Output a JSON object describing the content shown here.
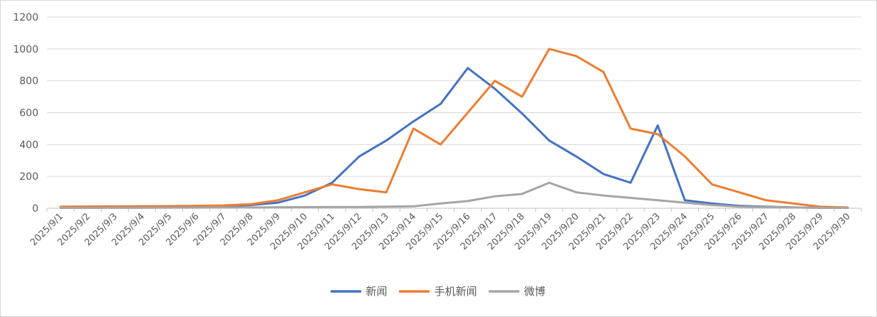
{
  "chart_data": {
    "type": "line",
    "title": "",
    "xlabel": "",
    "ylabel": "",
    "ylim": [
      0,
      1200
    ],
    "yticks": [
      0,
      200,
      400,
      600,
      800,
      1000,
      1200
    ],
    "grid": true,
    "legend_position": "bottom",
    "categories": [
      "2025/9/1",
      "2025/9/2",
      "2025/9/3",
      "2025/9/4",
      "2025/9/5",
      "2025/9/6",
      "2025/9/7",
      "2025/9/8",
      "2025/9/9",
      "2025/9/10",
      "2025/9/11",
      "2025/9/12",
      "2025/9/13",
      "2025/9/14",
      "2025/9/15",
      "2025/9/16",
      "2025/9/17",
      "2025/9/18",
      "2025/9/19",
      "2025/9/20",
      "2025/9/21",
      "2025/9/22",
      "2025/9/23",
      "2025/9/24",
      "2025/9/25",
      "2025/9/26",
      "2025/9/27",
      "2025/9/28",
      "2025/9/29",
      "2025/9/30"
    ],
    "series": [
      {
        "name": "新闻",
        "color": "#4472C4",
        "values": [
          5,
          6,
          7,
          8,
          9,
          10,
          12,
          20,
          35,
          80,
          160,
          325,
          425,
          545,
          655,
          880,
          750,
          595,
          425,
          325,
          215,
          160,
          520,
          50,
          30,
          15,
          10,
          5,
          3,
          2
        ]
      },
      {
        "name": "手机新闻",
        "color": "#ED7D31",
        "values": [
          10,
          11,
          12,
          13,
          14,
          15,
          18,
          25,
          50,
          100,
          150,
          120,
          100,
          500,
          400,
          600,
          800,
          700,
          1000,
          955,
          855,
          500,
          465,
          325,
          150,
          100,
          50,
          30,
          10,
          5
        ]
      },
      {
        "name": "微博",
        "color": "#A5A5A5",
        "values": [
          2,
          2,
          3,
          3,
          4,
          4,
          5,
          5,
          6,
          7,
          8,
          8,
          10,
          12,
          30,
          45,
          75,
          90,
          160,
          100,
          80,
          65,
          50,
          35,
          20,
          10,
          8,
          5,
          3,
          2
        ]
      }
    ]
  }
}
